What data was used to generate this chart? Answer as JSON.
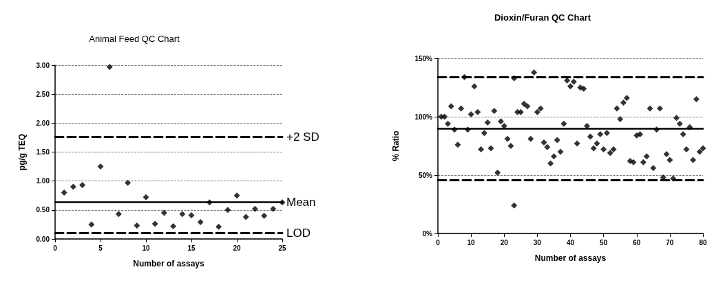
{
  "chart_data": [
    {
      "type": "scatter",
      "title": "Animal Feed QC Chart",
      "xlabel": "Number of assays",
      "ylabel": "pg/g TEQ",
      "x": [
        1,
        2,
        3,
        4,
        5,
        6,
        7,
        8,
        9,
        10,
        11,
        12,
        13,
        14,
        15,
        16,
        17,
        18,
        19,
        20,
        21,
        22,
        23,
        24,
        25
      ],
      "series": [
        {
          "color": "#000000",
          "values": [
            0.8,
            0.9,
            0.93,
            0.25,
            1.25,
            2.97,
            0.43,
            0.97,
            0.23,
            0.72,
            0.26,
            0.45,
            0.22,
            0.43,
            0.41,
            0.29,
            0.63,
            0.21,
            0.5,
            0.75,
            0.38,
            0.52,
            0.4,
            0.52,
            0.63
          ]
        }
      ],
      "xlim": [
        0,
        25
      ],
      "xticks": [
        0,
        5,
        10,
        15,
        20,
        25
      ],
      "ylim": [
        0,
        3
      ],
      "yticks": [
        {
          "value": 0,
          "label": "0.00"
        },
        {
          "value": 0.5,
          "label": "0.50"
        },
        {
          "value": 1,
          "label": "1.00"
        },
        {
          "value": 1.5,
          "label": "1.50"
        },
        {
          "value": 2,
          "label": "2.00"
        },
        {
          "value": 2.5,
          "label": "2.50"
        },
        {
          "value": 3,
          "label": "3.00"
        }
      ],
      "ref_lines": [
        {
          "axis": "y",
          "value": 1.76,
          "label": "+2 SD",
          "line_style": "dashed",
          "color": "#000000"
        },
        {
          "axis": "y",
          "value": 0.64,
          "label": "Mean",
          "line_style": "solid",
          "color": "#000000"
        },
        {
          "axis": "y",
          "value": 0.1,
          "label": "LOD",
          "line_style": "dashed",
          "color": "#000000"
        }
      ],
      "grid": "y",
      "marker": "diamond"
    },
    {
      "type": "scatter",
      "title": "Dioxin/Furan QC Chart",
      "xlabel": "Number of assays",
      "ylabel": "% Ratio",
      "x": [
        1,
        2,
        3,
        4,
        5,
        6,
        7,
        8,
        9,
        10,
        11,
        12,
        13,
        14,
        15,
        16,
        17,
        18,
        19,
        20,
        21,
        22,
        23,
        23,
        24,
        25,
        26,
        27,
        28,
        29,
        30,
        31,
        32,
        33,
        34,
        35,
        36,
        37,
        38,
        39,
        40,
        41,
        42,
        43,
        44,
        45,
        46,
        47,
        48,
        49,
        50,
        51,
        52,
        53,
        54,
        55,
        56,
        57,
        58,
        59,
        60,
        61,
        62,
        63,
        64,
        65,
        66,
        67,
        68,
        69,
        70,
        71,
        72,
        73,
        74,
        75,
        76,
        77,
        78,
        79,
        80
      ],
      "series": [
        {
          "color": "#000000",
          "values": [
            100,
            100,
            94,
            109,
            89,
            76,
            107,
            134,
            89,
            102,
            126,
            104,
            72,
            86,
            95,
            73,
            105,
            52,
            96,
            92,
            81,
            75,
            133,
            24,
            104,
            104,
            111,
            109,
            81,
            138,
            104,
            107,
            78,
            74,
            60,
            66,
            80,
            70,
            94,
            131,
            126,
            130,
            77,
            125,
            124,
            92,
            83,
            73,
            77,
            85,
            72,
            86,
            69,
            72,
            107,
            98,
            112,
            116,
            62,
            61,
            84,
            85,
            61,
            66,
            107,
            56,
            89,
            107,
            48,
            68,
            63,
            47,
            99,
            94,
            85,
            72,
            91,
            63,
            115,
            70,
            73
          ]
        }
      ],
      "xlim": [
        0,
        80
      ],
      "xticks": [
        0,
        10,
        20,
        30,
        40,
        50,
        60,
        70,
        80
      ],
      "ylim": [
        0,
        150
      ],
      "yticks": [
        {
          "value": 0,
          "label": "0%"
        },
        {
          "value": 50,
          "label": "50%"
        },
        {
          "value": 100,
          "label": "100%"
        },
        {
          "value": 150,
          "label": "150%"
        }
      ],
      "ref_lines": [
        {
          "axis": "y",
          "value": 134,
          "line_style": "dashed",
          "color": "#000000"
        },
        {
          "axis": "y",
          "value": 90,
          "line_style": "solid",
          "color": "#000000"
        },
        {
          "axis": "y",
          "value": 46,
          "line_style": "dashed",
          "color": "#000000"
        }
      ],
      "grid": "y",
      "marker": "diamond"
    }
  ]
}
